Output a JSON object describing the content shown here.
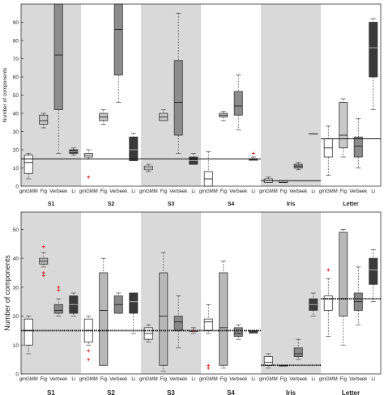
{
  "chart_data": [
    {
      "type": "boxplot",
      "ylabel": "Number of components",
      "ylim": [
        0,
        100
      ],
      "yticks": [
        0,
        10,
        20,
        30,
        40,
        50,
        60,
        70,
        80,
        90
      ],
      "method_labels": [
        "gmGMM",
        "Fig",
        "Verbeek",
        "Li"
      ],
      "method_colors": [
        "#ffffff",
        "#c8c8c8",
        "#8c8c8c",
        "#3a3a3a"
      ],
      "groups": [
        {
          "name": "S1",
          "shaded": true,
          "reference": 15,
          "boxes": [
            {
              "whislo": 4,
              "q1": 7,
              "med": 13,
              "q3": 17,
              "whishi": 18,
              "fliers": []
            },
            {
              "whislo": 32,
              "q1": 34,
              "med": 36,
              "q3": 39,
              "whishi": 40,
              "fliers": []
            },
            {
              "whislo": 18,
              "q1": 42,
              "med": 72,
              "q3": 100,
              "whishi": 100,
              "fliers": []
            },
            {
              "whislo": 17,
              "q1": 18,
              "med": 19,
              "q3": 20,
              "whishi": 21,
              "fliers": []
            }
          ]
        },
        {
          "name": "S2",
          "shaded": false,
          "reference": 15,
          "boxes": [
            {
              "whislo": 15,
              "q1": 16,
              "med": 17,
              "q3": 18,
              "whishi": 20,
              "fliers": [
                5
              ]
            },
            {
              "whislo": 34,
              "q1": 36,
              "med": 38,
              "q3": 40,
              "whishi": 42,
              "fliers": []
            },
            {
              "whislo": 46,
              "q1": 61,
              "med": 86,
              "q3": 100,
              "whishi": 100,
              "fliers": []
            },
            {
              "whislo": 14,
              "q1": 14,
              "med": 20,
              "q3": 27,
              "whishi": 29,
              "fliers": []
            }
          ]
        },
        {
          "name": "S3",
          "shaded": true,
          "reference": 15,
          "boxes": [
            {
              "whislo": 8,
              "q1": 9,
              "med": 10,
              "q3": 11,
              "whishi": 12,
              "fliers": []
            },
            {
              "whislo": 36,
              "q1": 36,
              "med": 38,
              "q3": 40,
              "whishi": 42,
              "fliers": []
            },
            {
              "whislo": 18,
              "q1": 28,
              "med": 46,
              "q3": 69,
              "whishi": 95,
              "fliers": []
            },
            {
              "whislo": 12,
              "q1": 12,
              "med": 14,
              "q3": 16,
              "whishi": 18,
              "fliers": []
            }
          ]
        },
        {
          "name": "S4",
          "shaded": false,
          "reference": 15,
          "boxes": [
            {
              "whislo": 0,
              "q1": 0,
              "med": 4,
              "q3": 8,
              "whishi": 19,
              "fliers": []
            },
            {
              "whislo": 36,
              "q1": 38,
              "med": 39,
              "q3": 40,
              "whishi": 41,
              "fliers": []
            },
            {
              "whislo": 31,
              "q1": 39,
              "med": 44,
              "q3": 52,
              "whishi": 61,
              "fliers": []
            },
            {
              "whislo": 14,
              "q1": 14,
              "med": 14,
              "q3": 15,
              "whishi": 16,
              "fliers": [
                18
              ]
            }
          ]
        },
        {
          "name": "Iris",
          "shaded": true,
          "reference": 3,
          "boxes": [
            {
              "whislo": 2,
              "q1": 2,
              "med": 3,
              "q3": 4,
              "whishi": 5,
              "fliers": []
            },
            {
              "whislo": 2,
              "q1": 2,
              "med": 2,
              "q3": 3,
              "whishi": 3,
              "fliers": []
            },
            {
              "whislo": 9,
              "q1": 10,
              "med": 11,
              "q3": 12,
              "whishi": 13,
              "fliers": []
            },
            {
              "whislo": 29,
              "q1": 29,
              "med": 29,
              "q3": 29,
              "whishi": 29,
              "fliers": []
            }
          ]
        },
        {
          "name": "Letter",
          "shaded": false,
          "reference": 26,
          "boxes": [
            {
              "whislo": 6,
              "q1": 16,
              "med": 21,
              "q3": 26,
              "whishi": 33,
              "fliers": []
            },
            {
              "whislo": 16,
              "q1": 21,
              "med": 28,
              "q3": 46,
              "whishi": 48,
              "fliers": []
            },
            {
              "whislo": 10,
              "q1": 16,
              "med": 22,
              "q3": 27,
              "whishi": 37,
              "fliers": []
            },
            {
              "whislo": 42,
              "q1": 60,
              "med": 76,
              "q3": 90,
              "whishi": 92,
              "fliers": []
            }
          ]
        }
      ]
    },
    {
      "type": "boxplot",
      "ylabel": "Number of components",
      "ylim": [
        0,
        56
      ],
      "yticks": [
        0,
        10,
        20,
        30,
        40,
        50
      ],
      "method_labels": [
        "gmGMM",
        "Fig",
        "Verbeek",
        "Li"
      ],
      "method_colors": [
        "#ffffff",
        "#b8b8b8",
        "#888888",
        "#3a3a3a"
      ],
      "groups": [
        {
          "name": "S1",
          "shaded": true,
          "reference": 15,
          "boxes": [
            {
              "whislo": 7,
              "q1": 10,
              "med": 15,
              "q3": 19,
              "whishi": 20,
              "fliers": []
            },
            {
              "whislo": 37,
              "q1": 38,
              "med": 39,
              "q3": 40,
              "whishi": 42,
              "fliers": [
                34,
                35,
                44
              ]
            },
            {
              "whislo": 20,
              "q1": 21,
              "med": 22,
              "q3": 24,
              "whishi": 26,
              "fliers": [
                29,
                30
              ]
            },
            {
              "whislo": 20,
              "q1": 21,
              "med": 24,
              "q3": 27,
              "whishi": 28,
              "fliers": []
            }
          ]
        },
        {
          "name": "S2",
          "shaded": false,
          "reference": 15,
          "boxes": [
            {
              "whislo": 10,
              "q1": 11,
              "med": 15,
              "q3": 19,
              "whishi": 20,
              "fliers": [
                5,
                8
              ]
            },
            {
              "whislo": 3,
              "q1": 3,
              "med": 22,
              "q3": 35,
              "whishi": 40,
              "fliers": []
            },
            {
              "whislo": 21,
              "q1": 21,
              "med": 24,
              "q3": 27,
              "whishi": 28,
              "fliers": []
            },
            {
              "whislo": 14,
              "q1": 21,
              "med": 25,
              "q3": 28,
              "whishi": 28,
              "fliers": []
            }
          ]
        },
        {
          "name": "S3",
          "shaded": true,
          "reference": 15,
          "boxes": [
            {
              "whislo": 11,
              "q1": 12,
              "med": 14,
              "q3": 16,
              "whishi": 17,
              "fliers": []
            },
            {
              "whislo": 1,
              "q1": 3,
              "med": 20,
              "q3": 35,
              "whishi": 42,
              "fliers": []
            },
            {
              "whislo": 9,
              "q1": 15,
              "med": 18,
              "q3": 20,
              "whishi": 27,
              "fliers": []
            },
            {
              "whislo": 14,
              "q1": 15,
              "med": 15,
              "q3": 15,
              "whishi": 16,
              "fliers": [
                15
              ]
            }
          ]
        },
        {
          "name": "S4",
          "shaded": false,
          "reference": 15,
          "boxes": [
            {
              "whislo": 14,
              "q1": 15,
              "med": 18,
              "q3": 19,
              "whishi": 24,
              "fliers": [
                2,
                3
              ]
            },
            {
              "whislo": 2,
              "q1": 3,
              "med": 16,
              "q3": 35,
              "whishi": 39,
              "fliers": []
            },
            {
              "whislo": 12,
              "q1": 13,
              "med": 14,
              "q3": 16,
              "whishi": 17,
              "fliers": []
            },
            {
              "whislo": 14,
              "q1": 14,
              "med": 14,
              "q3": 15,
              "whishi": 15,
              "fliers": []
            }
          ]
        },
        {
          "name": "Iris",
          "shaded": true,
          "reference": 3,
          "boxes": [
            {
              "whislo": 2,
              "q1": 3,
              "med": 4,
              "q3": 6,
              "whishi": 7,
              "fliers": []
            },
            {
              "whislo": 3,
              "q1": 3,
              "med": 3,
              "q3": 3,
              "whishi": 3,
              "fliers": []
            },
            {
              "whislo": 5,
              "q1": 6,
              "med": 7,
              "q3": 9,
              "whishi": 12,
              "fliers": []
            },
            {
              "whislo": 20,
              "q1": 22,
              "med": 24,
              "q3": 26,
              "whishi": 28,
              "fliers": []
            }
          ]
        },
        {
          "name": "Letter",
          "shaded": false,
          "reference": 26,
          "boxes": [
            {
              "whislo": 13,
              "q1": 22,
              "med": 26,
              "q3": 27,
              "whishi": 33,
              "fliers": [
                36
              ]
            },
            {
              "whislo": 10,
              "q1": 20,
              "med": 26,
              "q3": 49,
              "whishi": 50,
              "fliers": []
            },
            {
              "whislo": 17,
              "q1": 22,
              "med": 25,
              "q3": 28,
              "whishi": 37,
              "fliers": []
            },
            {
              "whislo": 25,
              "q1": 31,
              "med": 36,
              "q3": 40,
              "whishi": 43,
              "fliers": []
            }
          ]
        }
      ]
    }
  ]
}
